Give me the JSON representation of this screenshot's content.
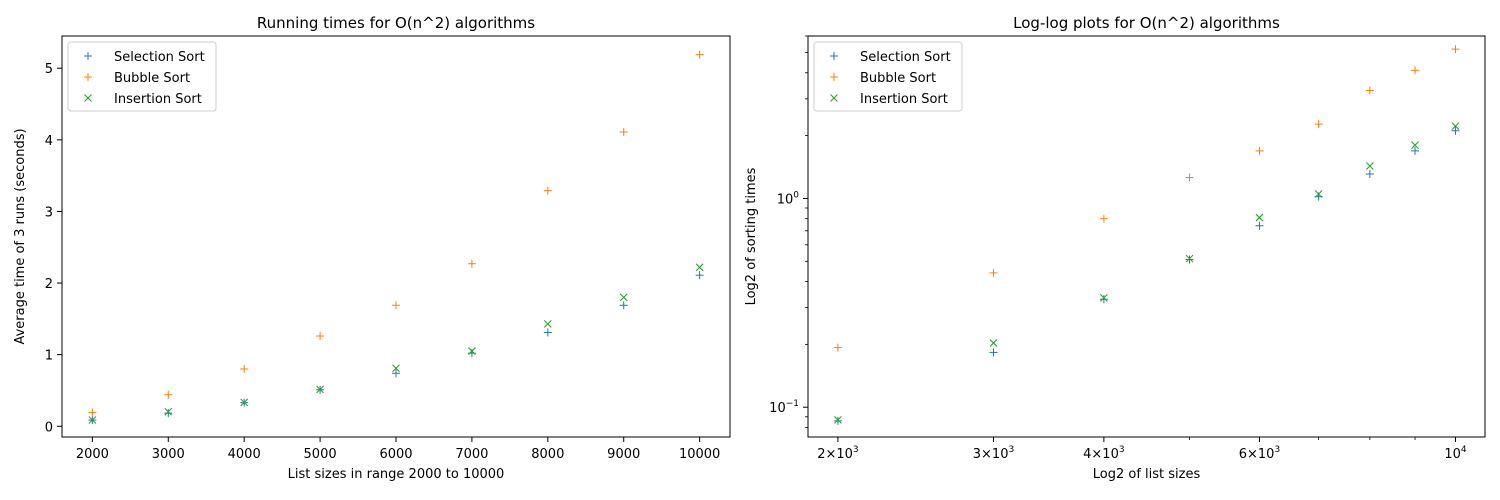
{
  "colors": {
    "selection": "#1f77b4",
    "bubble": "#ff7f0e",
    "insertion": "#2ca02c"
  },
  "chart_data": [
    {
      "type": "scatter",
      "title": "Running times for O(n^2) algorithms",
      "xlabel": "List sizes in range 2000 to 10000",
      "ylabel": "Average time of 3 runs (seconds)",
      "xlim": [
        1600,
        10400
      ],
      "ylim": [
        -0.15,
        5.45
      ],
      "xticks": [
        2000,
        3000,
        4000,
        5000,
        6000,
        7000,
        8000,
        9000,
        10000
      ],
      "yticks": [
        0,
        1,
        2,
        3,
        4,
        5
      ],
      "legend": "top-left",
      "x": [
        2000,
        3000,
        4000,
        5000,
        6000,
        7000,
        8000,
        9000,
        10000
      ],
      "series": [
        {
          "name": "Selection Sort",
          "marker": "+",
          "color": "#1f77b4",
          "values": [
            0.086,
            0.183,
            0.329,
            0.51,
            0.74,
            1.02,
            1.31,
            1.69,
            2.11
          ]
        },
        {
          "name": "Bubble Sort",
          "marker": "+",
          "color": "#ff7f0e",
          "values": [
            0.193,
            0.44,
            0.8,
            1.26,
            1.69,
            2.27,
            3.29,
            4.11,
            5.19
          ]
        },
        {
          "name": "Insertion Sort",
          "marker": "x",
          "color": "#2ca02c",
          "values": [
            0.087,
            0.203,
            0.334,
            0.515,
            0.81,
            1.05,
            1.43,
            1.8,
            2.22
          ]
        }
      ]
    },
    {
      "type": "scatter",
      "title": "Log-log plots for O(n^2) algorithms",
      "xlabel": "Log2 of list sizes",
      "ylabel": "Log2 of sorting times",
      "xscale": "log",
      "yscale": "log",
      "xlim": [
        1850,
        10800
      ],
      "ylim": [
        0.072,
        6.0
      ],
      "xticks": [
        {
          "value": 2000,
          "mantissa": "2",
          "exponent": "3"
        },
        {
          "value": 3000,
          "mantissa": "3",
          "exponent": "3"
        },
        {
          "value": 4000,
          "mantissa": "4",
          "exponent": "3"
        },
        {
          "value": 6000,
          "mantissa": "6",
          "exponent": "3"
        },
        {
          "value": 10000,
          "mantissa": "",
          "exponent": "4"
        }
      ],
      "yticks": [
        {
          "value": 0.1,
          "mantissa": "",
          "exponent": "−1"
        },
        {
          "value": 1,
          "mantissa": "",
          "exponent": "0"
        }
      ],
      "legend": "top-left",
      "x": [
        2000,
        3000,
        4000,
        5000,
        6000,
        7000,
        8000,
        9000,
        10000
      ],
      "series": [
        {
          "name": "Selection Sort",
          "marker": "+",
          "color": "#1f77b4",
          "values": [
            0.086,
            0.183,
            0.329,
            0.51,
            0.74,
            1.02,
            1.31,
            1.69,
            2.11
          ]
        },
        {
          "name": "Bubble Sort",
          "marker": "+",
          "color": "#ff7f0e",
          "values": [
            0.193,
            0.44,
            0.8,
            1.26,
            1.69,
            2.27,
            3.29,
            4.11,
            5.19
          ]
        },
        {
          "name": "Insertion Sort",
          "marker": "x",
          "color": "#2ca02c",
          "values": [
            0.087,
            0.203,
            0.334,
            0.515,
            0.81,
            1.05,
            1.43,
            1.8,
            2.22
          ]
        }
      ]
    }
  ]
}
